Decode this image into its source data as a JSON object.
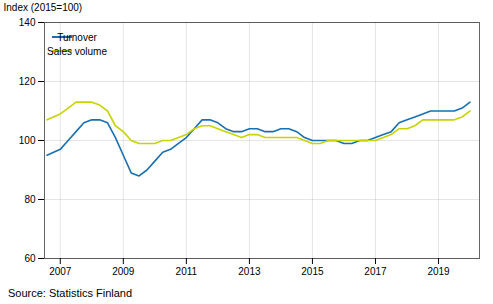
{
  "chart_data": {
    "type": "line",
    "ylabel": "Index (2015=100)",
    "source": "Source: Statistics Finland",
    "x": [
      2006.58,
      2007.0,
      2007.25,
      2007.5,
      2007.75,
      2008.0,
      2008.25,
      2008.5,
      2008.75,
      2009.0,
      2009.25,
      2009.5,
      2009.75,
      2010.0,
      2010.25,
      2010.5,
      2010.75,
      2011.0,
      2011.25,
      2011.5,
      2011.75,
      2012.0,
      2012.25,
      2012.5,
      2012.75,
      2013.0,
      2013.25,
      2013.5,
      2013.75,
      2014.0,
      2014.25,
      2014.5,
      2014.75,
      2015.0,
      2015.25,
      2015.5,
      2015.75,
      2016.0,
      2016.25,
      2016.5,
      2016.75,
      2017.0,
      2017.25,
      2017.5,
      2017.75,
      2018.0,
      2018.25,
      2018.5,
      2018.75,
      2019.0,
      2019.25,
      2019.5,
      2019.75,
      2020.0
    ],
    "series": [
      {
        "name": "Turnover",
        "color": "#1a6faf",
        "values": [
          95,
          97,
          100,
          103,
          106,
          107,
          107,
          106,
          101,
          95,
          89,
          88,
          90,
          93,
          96,
          97,
          99,
          101,
          104,
          107,
          107,
          106,
          104,
          103,
          103,
          104,
          104,
          103,
          103,
          104,
          104,
          103,
          101,
          100,
          100,
          100,
          100,
          99,
          99,
          100,
          100,
          101,
          102,
          103,
          106,
          107,
          108,
          109,
          110,
          110,
          110,
          110,
          111,
          113
        ]
      },
      {
        "name": "Sales volume",
        "color": "#c8d400",
        "values": [
          107,
          109,
          111,
          113,
          113,
          113,
          112,
          110,
          105,
          103,
          100,
          99,
          99,
          99,
          100,
          100,
          101,
          102,
          104,
          105,
          105,
          104,
          103,
          102,
          101,
          102,
          102,
          101,
          101,
          101,
          101,
          101,
          100,
          99,
          99,
          100,
          100,
          100,
          100,
          100,
          100,
          100,
          101,
          102,
          104,
          104,
          105,
          107,
          107,
          107,
          107,
          107,
          108,
          110
        ]
      }
    ],
    "xlim": [
      2006.5,
      2020.3
    ],
    "xticks": [
      2007,
      2009,
      2011,
      2013,
      2015,
      2017,
      2019
    ],
    "ylim": [
      60,
      140
    ],
    "yticks": [
      60,
      80,
      100,
      120,
      140
    ],
    "grid": true,
    "legend": "upper left"
  }
}
